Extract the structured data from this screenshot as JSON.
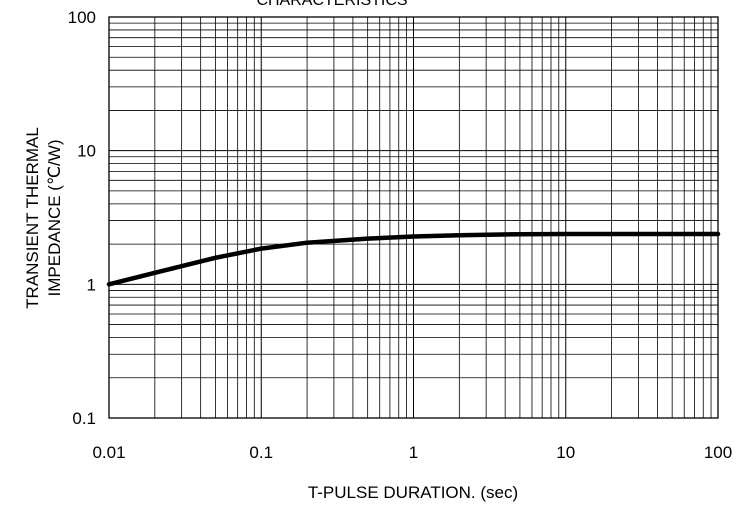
{
  "chart_data": {
    "type": "line",
    "title": "CHARACTERISTICS",
    "xlabel": "T-PULSE DURATION. (sec)",
    "ylabel_line1": "TRANSIENT THERMAL",
    "ylabel_line2": "IMPEDANCE (℃/W)",
    "x_scale": "log",
    "y_scale": "log",
    "xlim": [
      0.01,
      100
    ],
    "ylim": [
      0.1,
      100
    ],
    "grid": true,
    "x_tick_labels": [
      "0.01",
      "0.1",
      "1",
      "10",
      "100"
    ],
    "y_tick_labels": [
      "0.1",
      "1",
      "10",
      "100"
    ],
    "series": [
      {
        "color": "#000000",
        "x": [
          0.01,
          0.02,
          0.05,
          0.1,
          0.2,
          0.5,
          1,
          2,
          5,
          10,
          20,
          50,
          100
        ],
        "y": [
          1.0,
          1.22,
          1.58,
          1.85,
          2.05,
          2.2,
          2.28,
          2.33,
          2.37,
          2.38,
          2.38,
          2.38,
          2.38
        ]
      }
    ]
  }
}
